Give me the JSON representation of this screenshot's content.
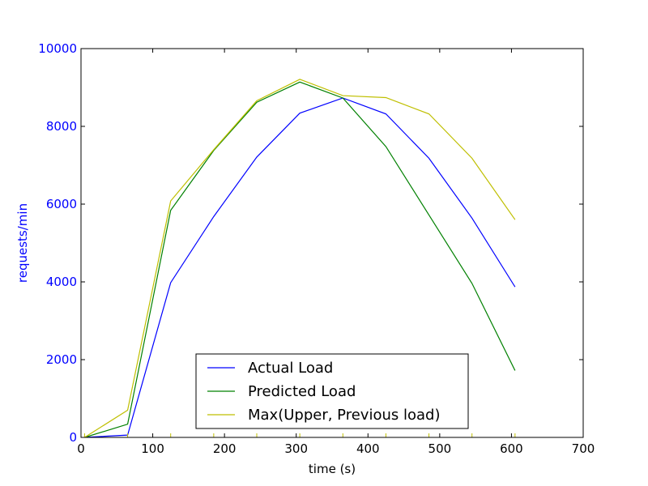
{
  "chart_data": {
    "type": "line",
    "xlabel": "time (s)",
    "ylabel": "requests/min",
    "xlim": [
      0,
      700
    ],
    "ylim": [
      0,
      10000
    ],
    "xticks": [
      0,
      100,
      200,
      300,
      400,
      500,
      600,
      700
    ],
    "yticks": [
      0,
      2000,
      4000,
      6000,
      8000,
      10000
    ],
    "grid": false,
    "legend_position": "bottom-center",
    "ytick_color": "#0000ff",
    "ylabel_color": "#0000ff",
    "marker_ticks_color": "#bfbf00",
    "series": [
      {
        "name": "Actual Load",
        "color": "#0000ff",
        "x": [
          5,
          65,
          125,
          185,
          245,
          305,
          365,
          425,
          485,
          545,
          605
        ],
        "y": [
          0,
          60,
          3980,
          5680,
          7210,
          8340,
          8730,
          8320,
          7180,
          5640,
          3870
        ]
      },
      {
        "name": "Predicted Load",
        "color": "#008000",
        "x": [
          5,
          65,
          125,
          185,
          245,
          305,
          365,
          425,
          485,
          545,
          605
        ],
        "y": [
          0,
          340,
          5840,
          7380,
          8620,
          9140,
          8730,
          7480,
          5720,
          3960,
          1720
        ]
      },
      {
        "name": "Max(Upper, Previous load)",
        "color": "#bfbf00",
        "x": [
          5,
          65,
          125,
          185,
          245,
          305,
          365,
          425,
          485,
          545,
          605
        ],
        "y": [
          0,
          700,
          6080,
          7400,
          8660,
          9210,
          8790,
          8740,
          8320,
          7180,
          5600
        ]
      }
    ]
  }
}
